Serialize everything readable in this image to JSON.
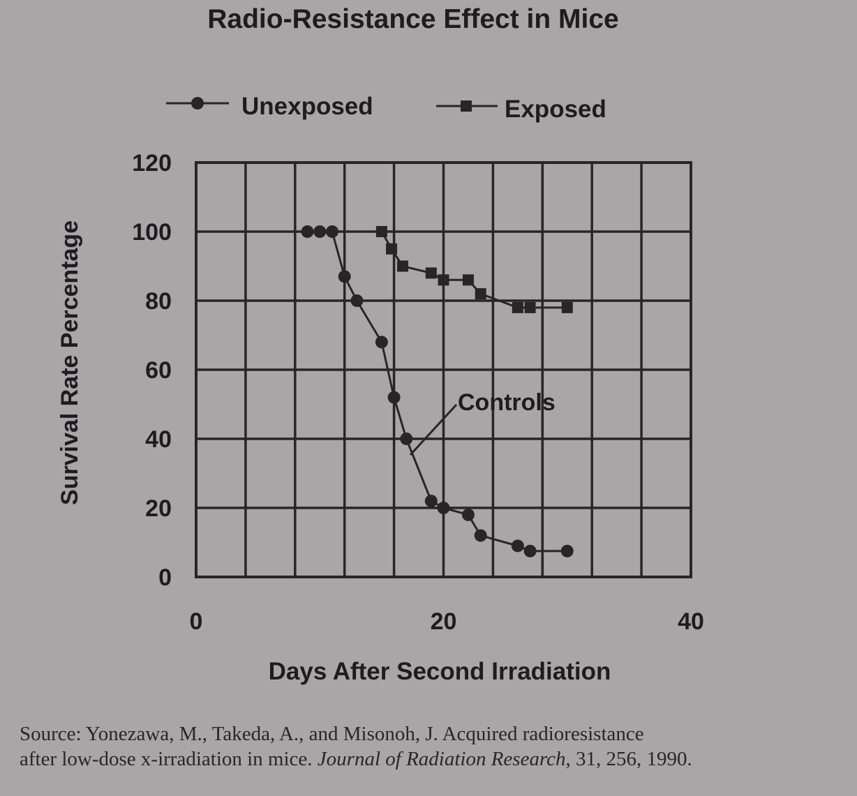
{
  "chart_data": {
    "type": "line",
    "title": "Radio-Resistance Effect in Mice",
    "xlabel": "Days After Second Irradiation",
    "ylabel": "Survival Rate Percentage",
    "xlim": [
      0,
      40
    ],
    "ylim": [
      0,
      120
    ],
    "x_ticks": [
      "0",
      "20",
      "40"
    ],
    "y_ticks": [
      "0",
      "20",
      "40",
      "60",
      "80",
      "100",
      "120"
    ],
    "grid": true,
    "legend_position": "top",
    "series": [
      {
        "name": "Unexposed",
        "marker": "circle",
        "color": "#2b2427",
        "x": [
          9,
          10,
          11,
          12,
          13,
          15,
          16,
          17,
          19,
          20,
          22,
          23,
          26,
          27,
          30
        ],
        "y": [
          100,
          100,
          100,
          87,
          80,
          68,
          52,
          40,
          22,
          20,
          18,
          12,
          9,
          7.5,
          7.5
        ]
      },
      {
        "name": "Exposed",
        "marker": "square",
        "color": "#2b2427",
        "x": [
          15,
          15.8,
          16.7,
          19,
          20,
          22,
          23,
          26,
          27,
          30
        ],
        "y": [
          100,
          95,
          90,
          88,
          86,
          86,
          82,
          78,
          78,
          78
        ]
      }
    ],
    "annotations": [
      "Controls"
    ]
  },
  "caption": {
    "line1": "Source: Yonezawa, M., Takeda, A., and Misonoh, J. Acquired radioresistance",
    "line2_prefix": "after low-dose x-irradiation in mice. ",
    "journal": "Journal of Radiation Research",
    "line2_suffix": ", 31, 256, 1990."
  }
}
